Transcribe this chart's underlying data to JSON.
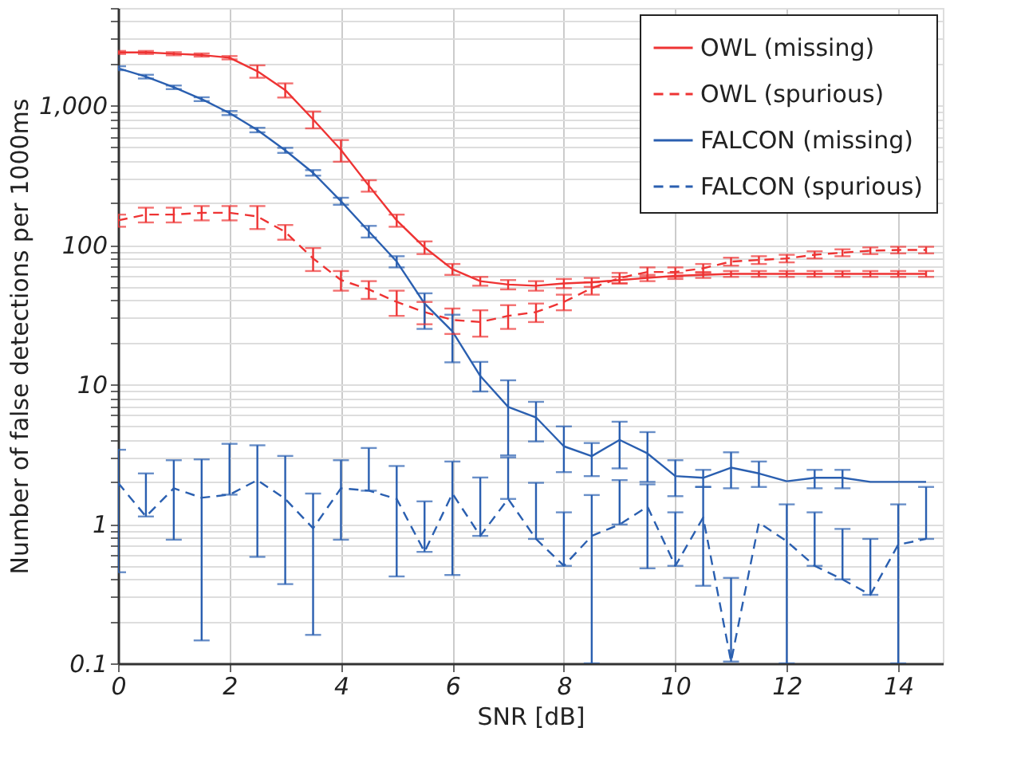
{
  "chart_data": {
    "type": "line",
    "xlabel": "SNR [dB]",
    "ylabel": "Number of false detections per 1000ms",
    "x": [
      0,
      0.5,
      1,
      1.5,
      2,
      2.5,
      3,
      3.5,
      4,
      4.5,
      5,
      5.5,
      6,
      6.5,
      7,
      7.5,
      8,
      8.5,
      9,
      9.5,
      10,
      10.5,
      11,
      11.5,
      12,
      12.5,
      13,
      13.5,
      14,
      14.5
    ],
    "series": [
      {
        "name": "OWL (missing)",
        "color": "#ee3333",
        "line_style": "solid",
        "values": [
          2400,
          2400,
          2350,
          2300,
          2200,
          1760,
          1290,
          795,
          480,
          266,
          150,
          96,
          67,
          55,
          52,
          51,
          53,
          54,
          56,
          58,
          60,
          61,
          62,
          62,
          62,
          62,
          62,
          62,
          62,
          62
        ],
        "errors": [
          60,
          60,
          60,
          60,
          60,
          180,
          150,
          110,
          85,
          25,
          15,
          10,
          6,
          4,
          4,
          4,
          4,
          4,
          3,
          3,
          3,
          3,
          3,
          3,
          3,
          3,
          3,
          3,
          3,
          3
        ]
      },
      {
        "name": "OWL (spurious)",
        "color": "#ee3333",
        "line_style": "dashed",
        "values": [
          150,
          165,
          165,
          170,
          170,
          160,
          124,
          80,
          56,
          48,
          39,
          33,
          29,
          28,
          31,
          33,
          39,
          49,
          58,
          64,
          64,
          68,
          76,
          78,
          80,
          85,
          88,
          91,
          92,
          92
        ],
        "errors": [
          15,
          20,
          20,
          20,
          20,
          30,
          15,
          15,
          9,
          7,
          8,
          6,
          6,
          6,
          6,
          5,
          5,
          5,
          5,
          5,
          5,
          5,
          5,
          5,
          5,
          5,
          5,
          5,
          5,
          5
        ]
      },
      {
        "name": "FALCON (missing)",
        "color": "#2a5fb0",
        "line_style": "solid",
        "values": [
          1850,
          1610,
          1350,
          1110,
          883,
          667,
          477,
          329,
          206,
          125,
          76,
          38,
          24,
          11.5,
          6.9,
          5.8,
          3.6,
          3.06,
          4.0,
          3.2,
          2.2,
          2.14,
          2.53,
          2.3,
          2.02,
          2.14,
          2.14,
          2.0,
          2.0,
          2.0
        ],
        "errors": [
          60,
          50,
          40,
          35,
          30,
          25,
          20,
          15,
          12,
          12,
          7,
          [
            25,
            45
          ],
          [
            14.4,
            31.6
          ],
          [
            8.9,
            14.5
          ],
          [
            3.1,
            10.7
          ],
          [
            3.9,
            7.5
          ],
          [
            2.35,
            5.0
          ],
          [
            2.2,
            3.8
          ],
          [
            2.5,
            5.4
          ],
          [
            2.0,
            4.55
          ],
          [
            1.58,
            2.86
          ],
          [
            1.84,
            2.44
          ],
          [
            1.8,
            3.26
          ],
          [
            1.84,
            2.8
          ],
          null,
          [
            1.8,
            2.44
          ],
          [
            1.8,
            2.44
          ],
          null,
          null,
          null
        ]
      },
      {
        "name": "FALCON (spurious)",
        "color": "#2a5fb0",
        "line_style": "dashed",
        "values": [
          1.97,
          1.13,
          1.8,
          1.54,
          1.62,
          2.06,
          1.51,
          0.93,
          1.8,
          1.73,
          1.51,
          0.63,
          1.65,
          0.82,
          1.51,
          0.78,
          0.5,
          0.82,
          0.99,
          1.33,
          0.5,
          1.11,
          0.103,
          1.02,
          0.75,
          0.5,
          0.4,
          0.31,
          0.71,
          0.78
        ],
        "errors": [
          [
            0.45,
            3.4
          ],
          [
            1.13,
            2.3
          ],
          [
            0.77,
            2.86
          ],
          [
            0.146,
            2.9
          ],
          [
            1.62,
            3.75
          ],
          [
            0.58,
            3.66
          ],
          [
            0.37,
            3.07
          ],
          [
            0.16,
            1.65
          ],
          [
            0.77,
            2.86
          ],
          [
            1.73,
            3.5
          ],
          [
            0.42,
            2.6
          ],
          [
            0.63,
            1.45
          ],
          [
            0.43,
            2.8
          ],
          [
            0.82,
            2.15
          ],
          [
            1.51,
            3.0
          ],
          [
            0.78,
            1.97
          ],
          [
            0.5,
            1.21
          ],
          [
            0.1,
            1.61
          ],
          [
            0.99,
            2.06
          ],
          [
            0.48,
            1.92
          ],
          [
            0.5,
            1.21
          ],
          [
            0.36,
            1.84
          ],
          [
            0.103,
            0.41
          ],
          null,
          [
            0.1,
            1.38
          ],
          [
            0.5,
            1.21
          ],
          [
            0.4,
            0.92
          ],
          [
            0.31,
            0.78
          ],
          [
            0.1,
            1.38
          ],
          [
            0.78,
            1.84
          ]
        ]
      }
    ],
    "xlim": [
      0,
      14.8
    ],
    "xticks": [
      0,
      2,
      4,
      6,
      8,
      10,
      12,
      14
    ],
    "log": true,
    "ylim": [
      0.1,
      5000
    ],
    "yticks": [
      {
        "value": 0.1,
        "label": "0.1"
      },
      {
        "value": 0.2,
        "label": null
      },
      {
        "value": 0.3,
        "label": null
      },
      {
        "value": 0.4,
        "label": null
      },
      {
        "value": 0.5,
        "label": null
      },
      {
        "value": 0.6,
        "label": null
      },
      {
        "value": 0.7,
        "label": null
      },
      {
        "value": 0.8,
        "label": null
      },
      {
        "value": 0.9,
        "label": null
      },
      {
        "value": 1,
        "label": "1"
      },
      {
        "value": 2,
        "label": null
      },
      {
        "value": 3,
        "label": null
      },
      {
        "value": 4,
        "label": null
      },
      {
        "value": 5,
        "label": null
      },
      {
        "value": 6,
        "label": null
      },
      {
        "value": 7,
        "label": null
      },
      {
        "value": 8,
        "label": null
      },
      {
        "value": 9,
        "label": null
      },
      {
        "value": 10,
        "label": "10"
      },
      {
        "value": 20,
        "label": null
      },
      {
        "value": 30,
        "label": null
      },
      {
        "value": 40,
        "label": null
      },
      {
        "value": 50,
        "label": null
      },
      {
        "value": 60,
        "label": null
      },
      {
        "value": 70,
        "label": null
      },
      {
        "value": 80,
        "label": null
      },
      {
        "value": 90,
        "label": null
      },
      {
        "value": 100,
        "label": "100"
      },
      {
        "value": 200,
        "label": null
      },
      {
        "value": 300,
        "label": null
      },
      {
        "value": 400,
        "label": null
      },
      {
        "value": 500,
        "label": null
      },
      {
        "value": 600,
        "label": null
      },
      {
        "value": 700,
        "label": null
      },
      {
        "value": 800,
        "label": null
      },
      {
        "value": 900,
        "label": null
      },
      {
        "value": 1000,
        "label": "1,000"
      },
      {
        "value": 2000,
        "label": null
      },
      {
        "value": 3000,
        "label": null
      },
      {
        "value": 4000,
        "label": null
      },
      {
        "value": 5000,
        "label": null
      }
    ],
    "grid": true,
    "legend": "top right",
    "marker": "none"
  }
}
